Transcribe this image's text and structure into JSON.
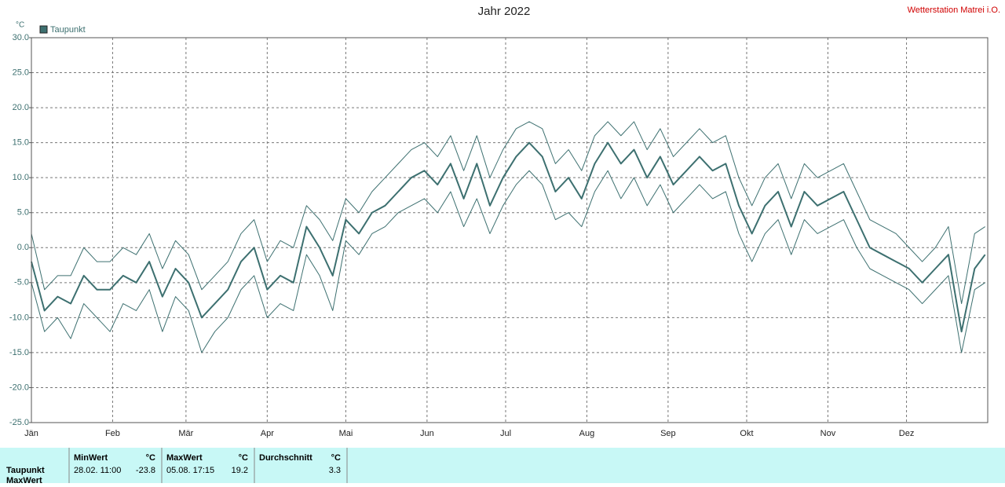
{
  "chart_data": {
    "type": "line",
    "title": "Jahr 2022",
    "station": "Wetterstation Matrei i.O.",
    "y_unit": "°C",
    "xlim": [
      0,
      365
    ],
    "xticks": [
      {
        "value": 0,
        "label": "Jän"
      },
      {
        "value": 31,
        "label": "Feb"
      },
      {
        "value": 59,
        "label": "Mär"
      },
      {
        "value": 90,
        "label": "Apr"
      },
      {
        "value": 120,
        "label": "Mai"
      },
      {
        "value": 151,
        "label": "Jun"
      },
      {
        "value": 181,
        "label": "Jul"
      },
      {
        "value": 212,
        "label": "Aug"
      },
      {
        "value": 243,
        "label": "Sep"
      },
      {
        "value": 273,
        "label": "Okt"
      },
      {
        "value": 304,
        "label": "Nov"
      },
      {
        "value": 334,
        "label": "Dez"
      }
    ],
    "ylim": [
      -25,
      30
    ],
    "yticks": [
      {
        "value": 30,
        "label": "30.0"
      },
      {
        "value": 25,
        "label": "25.0"
      },
      {
        "value": 20,
        "label": "20.0"
      },
      {
        "value": 15,
        "label": "15.0"
      },
      {
        "value": 10,
        "label": "10.0"
      },
      {
        "value": 5,
        "label": "5.0"
      },
      {
        "value": 0,
        "label": "0.0"
      },
      {
        "value": -5,
        "label": "-5.0"
      },
      {
        "value": -10,
        "label": "-10.0"
      },
      {
        "value": -15,
        "label": "-15.0"
      },
      {
        "value": -20,
        "label": "-20.0"
      },
      {
        "value": -25,
        "label": "-25.0"
      }
    ],
    "grid": true,
    "x": [
      0,
      5,
      10,
      15,
      20,
      25,
      30,
      35,
      40,
      45,
      50,
      55,
      60,
      65,
      70,
      75,
      80,
      85,
      90,
      95,
      100,
      105,
      110,
      115,
      120,
      125,
      130,
      135,
      140,
      145,
      150,
      155,
      160,
      165,
      170,
      175,
      180,
      185,
      190,
      195,
      200,
      205,
      210,
      215,
      220,
      225,
      230,
      235,
      240,
      245,
      250,
      255,
      260,
      265,
      270,
      275,
      280,
      285,
      290,
      295,
      300,
      305,
      310,
      315,
      320,
      325,
      330,
      335,
      340,
      345,
      350,
      355,
      360,
      364
    ],
    "series": [
      {
        "name": "Taupunkt",
        "color": "#3d7070",
        "width": 2,
        "values": [
          -2,
          -9,
          -7,
          -8,
          -4,
          -6,
          -6,
          -4,
          -5,
          -2,
          -7,
          -3,
          -5,
          -10,
          -8,
          -6,
          -2,
          0,
          -6,
          -4,
          -5,
          3,
          0,
          -4,
          4,
          2,
          5,
          6,
          8,
          10,
          11,
          9,
          12,
          7,
          12,
          6,
          10,
          13,
          15,
          13,
          8,
          10,
          7,
          12,
          15,
          12,
          14,
          10,
          13,
          9,
          11,
          13,
          11,
          12,
          6,
          2,
          6,
          8,
          3,
          8,
          6,
          7,
          8,
          4,
          0,
          -1,
          -2,
          -3,
          -5,
          -3,
          -1,
          -12,
          -3,
          -1
        ]
      },
      {
        "color": "#3d7070",
        "width": 1,
        "values": [
          -5,
          -12,
          -10,
          -13,
          -8,
          -10,
          -12,
          -8,
          -9,
          -6,
          -12,
          -7,
          -9,
          -15,
          -12,
          -10,
          -6,
          -4,
          -10,
          -8,
          -9,
          -1,
          -4,
          -9,
          1,
          -1,
          2,
          3,
          5,
          6,
          7,
          5,
          8,
          3,
          7,
          2,
          6,
          9,
          11,
          9,
          4,
          5,
          3,
          8,
          11,
          7,
          10,
          6,
          9,
          5,
          7,
          9,
          7,
          8,
          2,
          -2,
          2,
          4,
          -1,
          4,
          2,
          3,
          4,
          0,
          -3,
          -4,
          -5,
          -6,
          -8,
          -6,
          -4,
          -15,
          -6,
          -5
        ]
      },
      {
        "color": "#3d7070",
        "width": 1,
        "values": [
          2,
          -6,
          -4,
          -4,
          0,
          -2,
          -2,
          0,
          -1,
          2,
          -3,
          1,
          -1,
          -6,
          -4,
          -2,
          2,
          4,
          -2,
          1,
          0,
          6,
          4,
          1,
          7,
          5,
          8,
          10,
          12,
          14,
          15,
          13,
          16,
          11,
          16,
          10,
          14,
          17,
          18,
          17,
          12,
          14,
          11,
          16,
          18,
          16,
          18,
          14,
          17,
          13,
          15,
          17,
          15,
          16,
          10,
          6,
          10,
          12,
          7,
          12,
          10,
          11,
          12,
          8,
          4,
          3,
          2,
          0,
          -2,
          0,
          3,
          -8,
          2,
          3
        ]
      }
    ],
    "summary": {
      "row_label": "Taupunkt",
      "row2_label": "MaxWert",
      "min_header": "MinWert",
      "min_unit": "°C",
      "min_time": "28.02.  11:00",
      "min_value": "-23.8",
      "max_header": "MaxWert",
      "max_unit": "°C",
      "max_time": "05.08.  17:15",
      "max_value": "19.2",
      "avg_header": "Durchschnitt",
      "avg_unit": "°C",
      "avg_value": "3.3"
    }
  }
}
